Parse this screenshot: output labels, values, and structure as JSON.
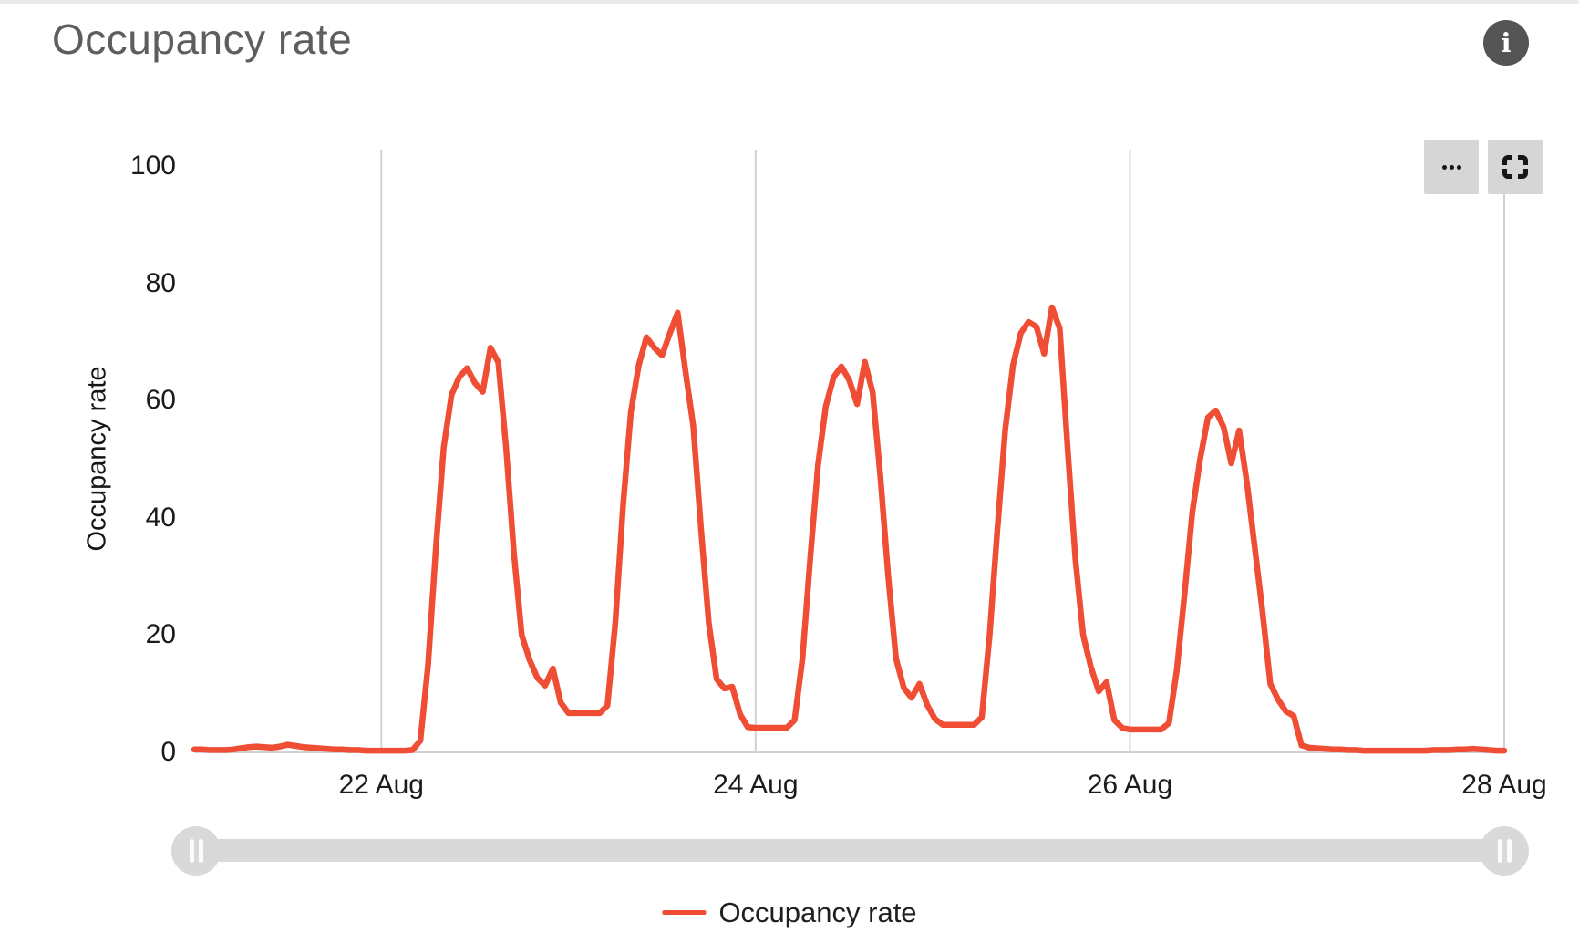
{
  "header": {
    "title": "Occupancy rate"
  },
  "icons": {
    "info": "info-icon",
    "menu": "ellipsis-icon",
    "fullscreen": "fullscreen-icon",
    "slider_handle": "drag-handle-icon"
  },
  "legend": {
    "label": "Occupancy rate"
  },
  "chart_data": {
    "type": "line",
    "title": "Occupancy rate",
    "xlabel": "",
    "ylabel": "Occupancy rate",
    "ylim": [
      0,
      100
    ],
    "y_ticks": [
      0,
      20,
      40,
      60,
      80,
      100
    ],
    "grid": "vertical-only",
    "legend_position": "bottom",
    "x_unit": "hour",
    "x_total_hours": 168,
    "x_ticks": [
      {
        "label": "22 Aug",
        "hour": 24
      },
      {
        "label": "24 Aug",
        "hour": 72
      },
      {
        "label": "26 Aug",
        "hour": 120
      },
      {
        "label": "28 Aug",
        "hour": 168
      }
    ],
    "series": [
      {
        "name": "Occupancy rate",
        "color": "#f04d35",
        "values": [
          0.5,
          0.5,
          0.4,
          0.4,
          0.4,
          0.5,
          0.7,
          0.9,
          1,
          0.9,
          0.8,
          1,
          1.3,
          1.1,
          0.9,
          0.8,
          0.7,
          0.6,
          0.5,
          0.5,
          0.4,
          0.4,
          0.3,
          0.3,
          0.3,
          0.3,
          0.3,
          0.3,
          0.4,
          2,
          15,
          35,
          52,
          61,
          64,
          65.5,
          63,
          61.5,
          69,
          66.5,
          52,
          34,
          20,
          15.8,
          12.7,
          11.4,
          14.3,
          8.5,
          6.7,
          6.7,
          6.7,
          6.7,
          6.7,
          8,
          22,
          42,
          58,
          66,
          70.8,
          69,
          67.7,
          71.5,
          75,
          65,
          55.7,
          38,
          22,
          12.5,
          10.9,
          11.2,
          6.5,
          4.3,
          4.2,
          4.2,
          4.2,
          4.2,
          4.2,
          5.5,
          16,
          33,
          49,
          59,
          64,
          65.8,
          63.5,
          59.4,
          66.6,
          61.4,
          47,
          30,
          16,
          11,
          9.3,
          11.7,
          8.1,
          5.7,
          4.7,
          4.7,
          4.7,
          4.7,
          4.7,
          6,
          20,
          38,
          55,
          66,
          71.5,
          73.4,
          72.6,
          68,
          75.9,
          72.3,
          52,
          33,
          20,
          14.5,
          10.4,
          12,
          5.5,
          4.2,
          3.9,
          3.9,
          3.9,
          3.9,
          3.9,
          5,
          14,
          27,
          41,
          50,
          57.1,
          58.3,
          55.5,
          49.3,
          54.9,
          46,
          35,
          24,
          11.7,
          9,
          7,
          6.2,
          1.2,
          0.8,
          0.7,
          0.6,
          0.5,
          0.5,
          0.4,
          0.4,
          0.3,
          0.3,
          0.3,
          0.3,
          0.3,
          0.3,
          0.3,
          0.3,
          0.3,
          0.4,
          0.4,
          0.4,
          0.5,
          0.5,
          0.6,
          0.5,
          0.4,
          0.3,
          0.3
        ]
      }
    ],
    "colors": {
      "series": "#f04d35",
      "gridline": "#d2d2d2",
      "axis_text": "#1b1b1b",
      "title_text": "#5d5e60",
      "button_bg": "#d6d6d6",
      "slider": "#d9d9d9",
      "info_bg": "#545454"
    }
  }
}
